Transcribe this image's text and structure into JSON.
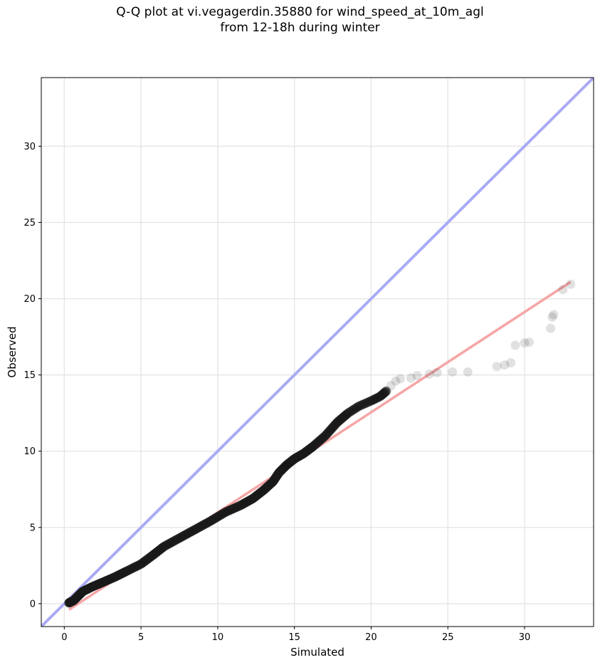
{
  "chart_data": {
    "type": "scatter",
    "title_line1": "Q-Q plot at vi.vegagerdin.35880 for wind_speed_at_10m_agl",
    "title_line2": "from 12-18h during winter",
    "xlabel": "Simulated",
    "ylabel": "Observed",
    "xlim": [
      -1.5,
      34.5
    ],
    "ylim": [
      -1.5,
      34.5
    ],
    "xticks": [
      0,
      5,
      10,
      15,
      20,
      25,
      30
    ],
    "yticks": [
      0,
      5,
      10,
      15,
      20,
      25,
      30
    ],
    "grid": true,
    "colors": {
      "points": "#1a1a1a",
      "identity_line": "#a9abf5",
      "fit_line": "#f6a5a5",
      "grid": "#e6e6e6"
    },
    "identity_line": {
      "x": [
        -1.5,
        34.5
      ],
      "y": [
        -1.5,
        34.5
      ]
    },
    "fit_line": {
      "x": [
        0.3,
        33.0
      ],
      "y": [
        -0.4,
        21.1
      ]
    },
    "qq_curve": {
      "x": [
        0.3,
        0.6,
        0.9,
        1.2,
        1.8,
        2.5,
        3.3,
        4.0,
        5.0,
        5.8,
        6.5,
        7.5,
        8.5,
        9.5,
        10.5,
        11.5,
        12.3,
        13.0,
        13.6,
        14.0,
        14.5,
        15.0,
        15.6,
        16.2,
        17.0,
        17.8,
        18.5,
        19.2,
        20.0,
        20.6,
        21.0
      ],
      "y": [
        0.05,
        0.2,
        0.5,
        0.8,
        1.1,
        1.4,
        1.75,
        2.1,
        2.6,
        3.2,
        3.75,
        4.3,
        4.85,
        5.4,
        6.0,
        6.45,
        6.9,
        7.45,
        8.0,
        8.6,
        9.1,
        9.5,
        9.85,
        10.3,
        11.0,
        11.9,
        12.5,
        12.95,
        13.3,
        13.6,
        13.95
      ]
    },
    "tail_points": {
      "x": [
        21.3,
        21.6,
        21.9,
        22.6,
        23.0,
        23.8,
        24.3,
        25.3,
        26.3,
        28.2,
        28.7,
        29.1,
        29.4,
        30.0,
        30.3,
        31.7,
        31.8,
        31.9,
        32.5,
        33.0
      ],
      "y": [
        14.3,
        14.6,
        14.75,
        14.8,
        14.95,
        15.05,
        15.15,
        15.2,
        15.2,
        15.55,
        15.65,
        15.8,
        16.95,
        17.1,
        17.15,
        18.05,
        18.8,
        18.95,
        20.6,
        20.95
      ]
    }
  }
}
